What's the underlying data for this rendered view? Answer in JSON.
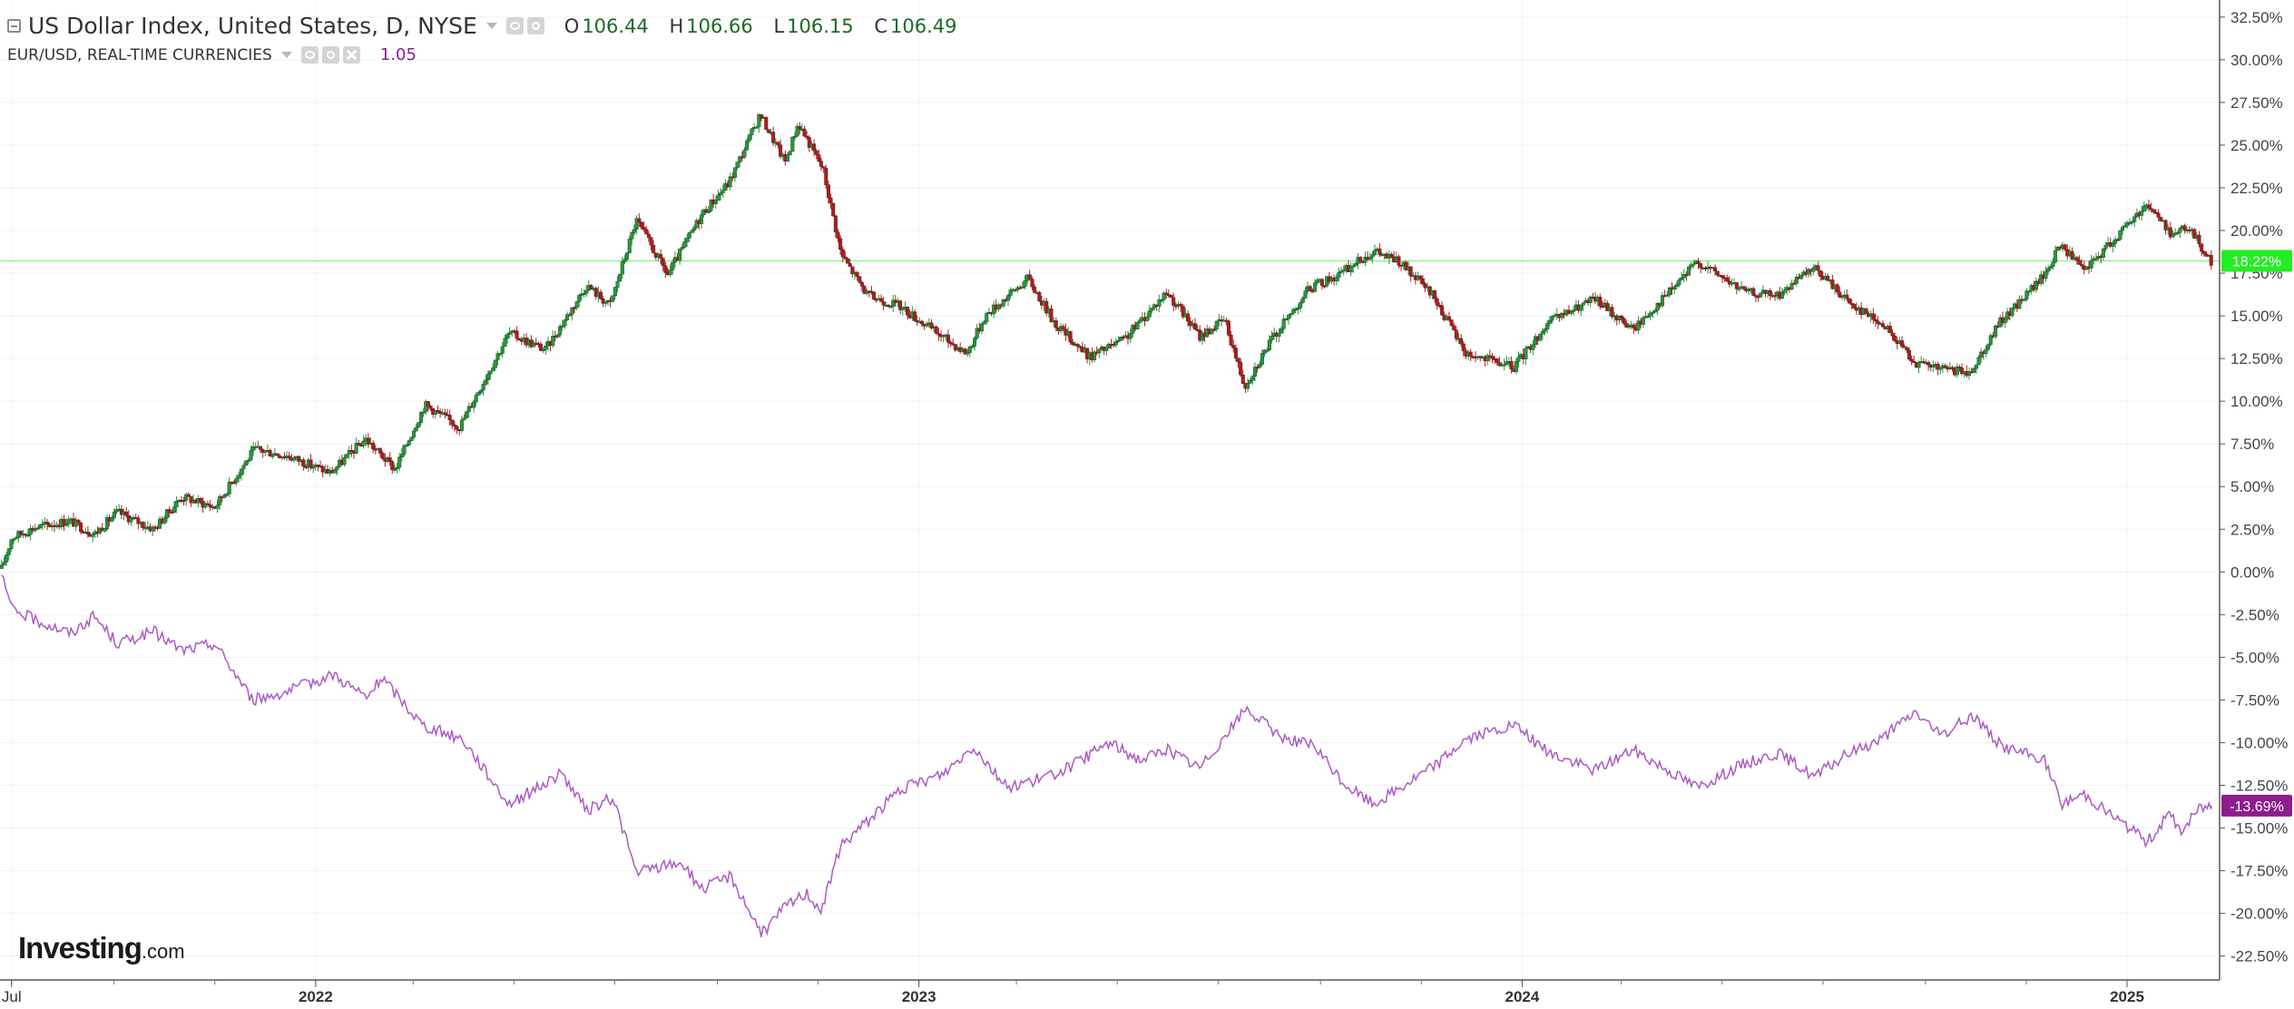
{
  "legend": {
    "title": "US Dollar Index, United States, D, NYSE",
    "ohlc": [
      {
        "key": "O",
        "value": "106.44"
      },
      {
        "key": "H",
        "value": "106.66"
      },
      {
        "key": "L",
        "value": "106.15"
      },
      {
        "key": "C",
        "value": "106.49"
      }
    ],
    "compare_title": "EUR/USD, REAL-TIME CURRENCIES",
    "compare_value": "1.05",
    "compare_color": "#8e1d8e"
  },
  "branding": {
    "name": "Investing",
    "tld": ".com"
  },
  "colors": {
    "up": "#229a3a",
    "down": "#b21a1a",
    "compare_line": "#a95bc4",
    "current_line": "#8cf58c",
    "current_badge": "#22ee22",
    "compare_badge": "#8e1d8e"
  },
  "chart_data": {
    "type": "line",
    "title": "",
    "xlabel": "",
    "ylabel": "",
    "percent_scale": true,
    "ylim": [
      -23.9,
      33.5
    ],
    "y_ticks": [
      "32.50%",
      "30.00%",
      "27.50%",
      "25.00%",
      "22.50%",
      "20.00%",
      "17.50%",
      "15.00%",
      "12.50%",
      "10.00%",
      "7.50%",
      "5.00%",
      "2.50%",
      "0.00%",
      "-2.50%",
      "-5.00%",
      "-7.50%",
      "-10.00%",
      "-12.50%",
      "-15.00%",
      "-17.50%",
      "-20.00%",
      "-22.50%"
    ],
    "y_tick_values": [
      32.5,
      30,
      27.5,
      25,
      22.5,
      20,
      17.5,
      15,
      12.5,
      10,
      7.5,
      5,
      2.5,
      0,
      -2.5,
      -5,
      -7.5,
      -10,
      -12.5,
      -15,
      -17.5,
      -20,
      -22.5
    ],
    "xlim": [
      "2021-06-24",
      "2025-02-26"
    ],
    "x_ticks": [
      {
        "label": "Jul",
        "date": "2021-07-01"
      },
      {
        "label": "2022",
        "date": "2022-01-01"
      },
      {
        "label": "2023",
        "date": "2023-01-01"
      },
      {
        "label": "2024",
        "date": "2024-01-01"
      },
      {
        "label": "2025",
        "date": "2025-01-01"
      }
    ],
    "grid": true,
    "series": [
      {
        "name": "US Dollar Index",
        "style": "candlestick",
        "current_label": "18.22%",
        "current_value": 18.22,
        "points": [
          [
            "2021-06-25",
            0.2
          ],
          [
            "2021-07-01",
            2.0
          ],
          [
            "2021-07-15",
            2.6
          ],
          [
            "2021-08-05",
            3.0
          ],
          [
            "2021-08-20",
            2.2
          ],
          [
            "2021-09-03",
            3.5
          ],
          [
            "2021-09-25",
            2.5
          ],
          [
            "2021-10-12",
            4.4
          ],
          [
            "2021-11-01",
            3.8
          ],
          [
            "2021-11-25",
            7.2
          ],
          [
            "2021-12-15",
            6.8
          ],
          [
            "2022-01-10",
            5.8
          ],
          [
            "2022-01-31",
            7.8
          ],
          [
            "2022-02-18",
            6.0
          ],
          [
            "2022-03-08",
            9.8
          ],
          [
            "2022-03-29",
            8.5
          ],
          [
            "2022-04-28",
            14.0
          ],
          [
            "2022-05-20",
            13.0
          ],
          [
            "2022-06-14",
            16.8
          ],
          [
            "2022-06-28",
            15.6
          ],
          [
            "2022-07-14",
            20.6
          ],
          [
            "2022-08-02",
            17.4
          ],
          [
            "2022-08-23",
            21.0
          ],
          [
            "2022-09-08",
            22.8
          ],
          [
            "2022-09-27",
            26.8
          ],
          [
            "2022-10-12",
            24.0
          ],
          [
            "2022-10-20",
            26.3
          ],
          [
            "2022-11-04",
            23.6
          ],
          [
            "2022-11-15",
            18.6
          ],
          [
            "2022-12-01",
            16.2
          ],
          [
            "2022-12-20",
            15.6
          ],
          [
            "2023-01-12",
            14.0
          ],
          [
            "2023-01-30",
            12.8
          ],
          [
            "2023-02-10",
            15.0
          ],
          [
            "2023-03-08",
            17.2
          ],
          [
            "2023-03-24",
            14.6
          ],
          [
            "2023-04-14",
            12.6
          ],
          [
            "2023-05-05",
            13.6
          ],
          [
            "2023-05-31",
            16.4
          ],
          [
            "2023-06-20",
            13.8
          ],
          [
            "2023-07-05",
            14.8
          ],
          [
            "2023-07-17",
            10.9
          ],
          [
            "2023-08-01",
            13.4
          ],
          [
            "2023-08-25",
            16.6
          ],
          [
            "2023-09-12",
            17.4
          ],
          [
            "2023-10-03",
            18.8
          ],
          [
            "2023-10-18",
            18.2
          ],
          [
            "2023-11-08",
            16.2
          ],
          [
            "2023-11-28",
            12.8
          ],
          [
            "2023-12-27",
            12.0
          ],
          [
            "2024-01-17",
            14.6
          ],
          [
            "2024-02-14",
            16.0
          ],
          [
            "2024-03-08",
            14.2
          ],
          [
            "2024-04-01",
            16.6
          ],
          [
            "2024-04-16",
            18.2
          ],
          [
            "2024-05-15",
            16.4
          ],
          [
            "2024-06-04",
            16.2
          ],
          [
            "2024-06-26",
            17.8
          ],
          [
            "2024-07-17",
            15.8
          ],
          [
            "2024-08-05",
            14.6
          ],
          [
            "2024-08-27",
            12.2
          ],
          [
            "2024-09-27",
            11.6
          ],
          [
            "2024-10-16",
            14.6
          ],
          [
            "2024-11-12",
            17.4
          ],
          [
            "2024-11-22",
            19.2
          ],
          [
            "2024-12-06",
            17.6
          ],
          [
            "2025-01-13",
            21.6
          ],
          [
            "2025-01-28",
            19.8
          ],
          [
            "2025-02-07",
            20.2
          ],
          [
            "2025-02-21",
            18.2
          ]
        ]
      },
      {
        "name": "EUR/USD",
        "style": "line",
        "current_label": "-13.69%",
        "current_value": -13.69,
        "points": [
          [
            "2021-06-25",
            -0.2
          ],
          [
            "2021-07-01",
            -2.2
          ],
          [
            "2021-07-20",
            -3.0
          ],
          [
            "2021-08-06",
            -3.6
          ],
          [
            "2021-08-20",
            -2.6
          ],
          [
            "2021-09-03",
            -4.2
          ],
          [
            "2021-09-25",
            -3.5
          ],
          [
            "2021-10-12",
            -4.6
          ],
          [
            "2021-11-01",
            -4.2
          ],
          [
            "2021-11-24",
            -7.5
          ],
          [
            "2021-12-15",
            -7.0
          ],
          [
            "2022-01-12",
            -6.0
          ],
          [
            "2022-02-01",
            -7.4
          ],
          [
            "2022-02-10",
            -6.2
          ],
          [
            "2022-03-07",
            -9.0
          ],
          [
            "2022-03-31",
            -9.8
          ],
          [
            "2022-04-28",
            -13.6
          ],
          [
            "2022-05-30",
            -11.8
          ],
          [
            "2022-06-14",
            -14.0
          ],
          [
            "2022-06-30",
            -13.2
          ],
          [
            "2022-07-14",
            -17.6
          ],
          [
            "2022-08-10",
            -17.0
          ],
          [
            "2022-08-23",
            -18.6
          ],
          [
            "2022-09-09",
            -17.8
          ],
          [
            "2022-09-28",
            -21.2
          ],
          [
            "2022-10-12",
            -19.6
          ],
          [
            "2022-10-25",
            -18.8
          ],
          [
            "2022-11-03",
            -19.8
          ],
          [
            "2022-11-15",
            -16.0
          ],
          [
            "2022-12-05",
            -14.2
          ],
          [
            "2022-12-20",
            -12.8
          ],
          [
            "2023-01-16",
            -11.8
          ],
          [
            "2023-02-03",
            -10.2
          ],
          [
            "2023-02-23",
            -12.6
          ],
          [
            "2023-03-20",
            -12.0
          ],
          [
            "2023-04-03",
            -11.4
          ],
          [
            "2023-04-26",
            -10.0
          ],
          [
            "2023-05-15",
            -11.0
          ],
          [
            "2023-05-31",
            -10.4
          ],
          [
            "2023-06-20",
            -11.5
          ],
          [
            "2023-07-18",
            -8.0
          ],
          [
            "2023-08-07",
            -9.6
          ],
          [
            "2023-08-28",
            -10.2
          ],
          [
            "2023-09-15",
            -12.4
          ],
          [
            "2023-10-03",
            -13.6
          ],
          [
            "2023-10-20",
            -12.6
          ],
          [
            "2023-11-08",
            -11.4
          ],
          [
            "2023-11-28",
            -9.8
          ],
          [
            "2023-12-27",
            -9.0
          ],
          [
            "2024-01-17",
            -10.6
          ],
          [
            "2024-02-14",
            -11.6
          ],
          [
            "2024-03-08",
            -10.4
          ],
          [
            "2024-04-16",
            -12.6
          ],
          [
            "2024-05-15",
            -11.2
          ],
          [
            "2024-06-04",
            -10.6
          ],
          [
            "2024-06-26",
            -12.0
          ],
          [
            "2024-07-17",
            -10.6
          ],
          [
            "2024-08-05",
            -9.8
          ],
          [
            "2024-08-26",
            -8.2
          ],
          [
            "2024-09-10",
            -9.6
          ],
          [
            "2024-09-30",
            -8.4
          ],
          [
            "2024-10-17",
            -10.2
          ],
          [
            "2024-11-12",
            -11.0
          ],
          [
            "2024-11-22",
            -13.6
          ],
          [
            "2024-12-06",
            -13.0
          ],
          [
            "2025-01-13",
            -15.8
          ],
          [
            "2025-01-27",
            -14.2
          ],
          [
            "2025-02-03",
            -15.2
          ],
          [
            "2025-02-14",
            -13.8
          ],
          [
            "2025-02-21",
            -13.69
          ]
        ]
      }
    ]
  }
}
